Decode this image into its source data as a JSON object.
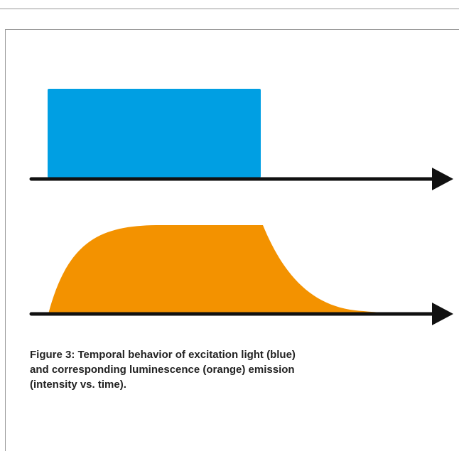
{
  "caption": {
    "lines": [
      "Figure 3: Temporal behavior of excitation light (blue)",
      "and corresponding luminescence (orange) emission",
      "(intensity vs. time)."
    ]
  }
}
